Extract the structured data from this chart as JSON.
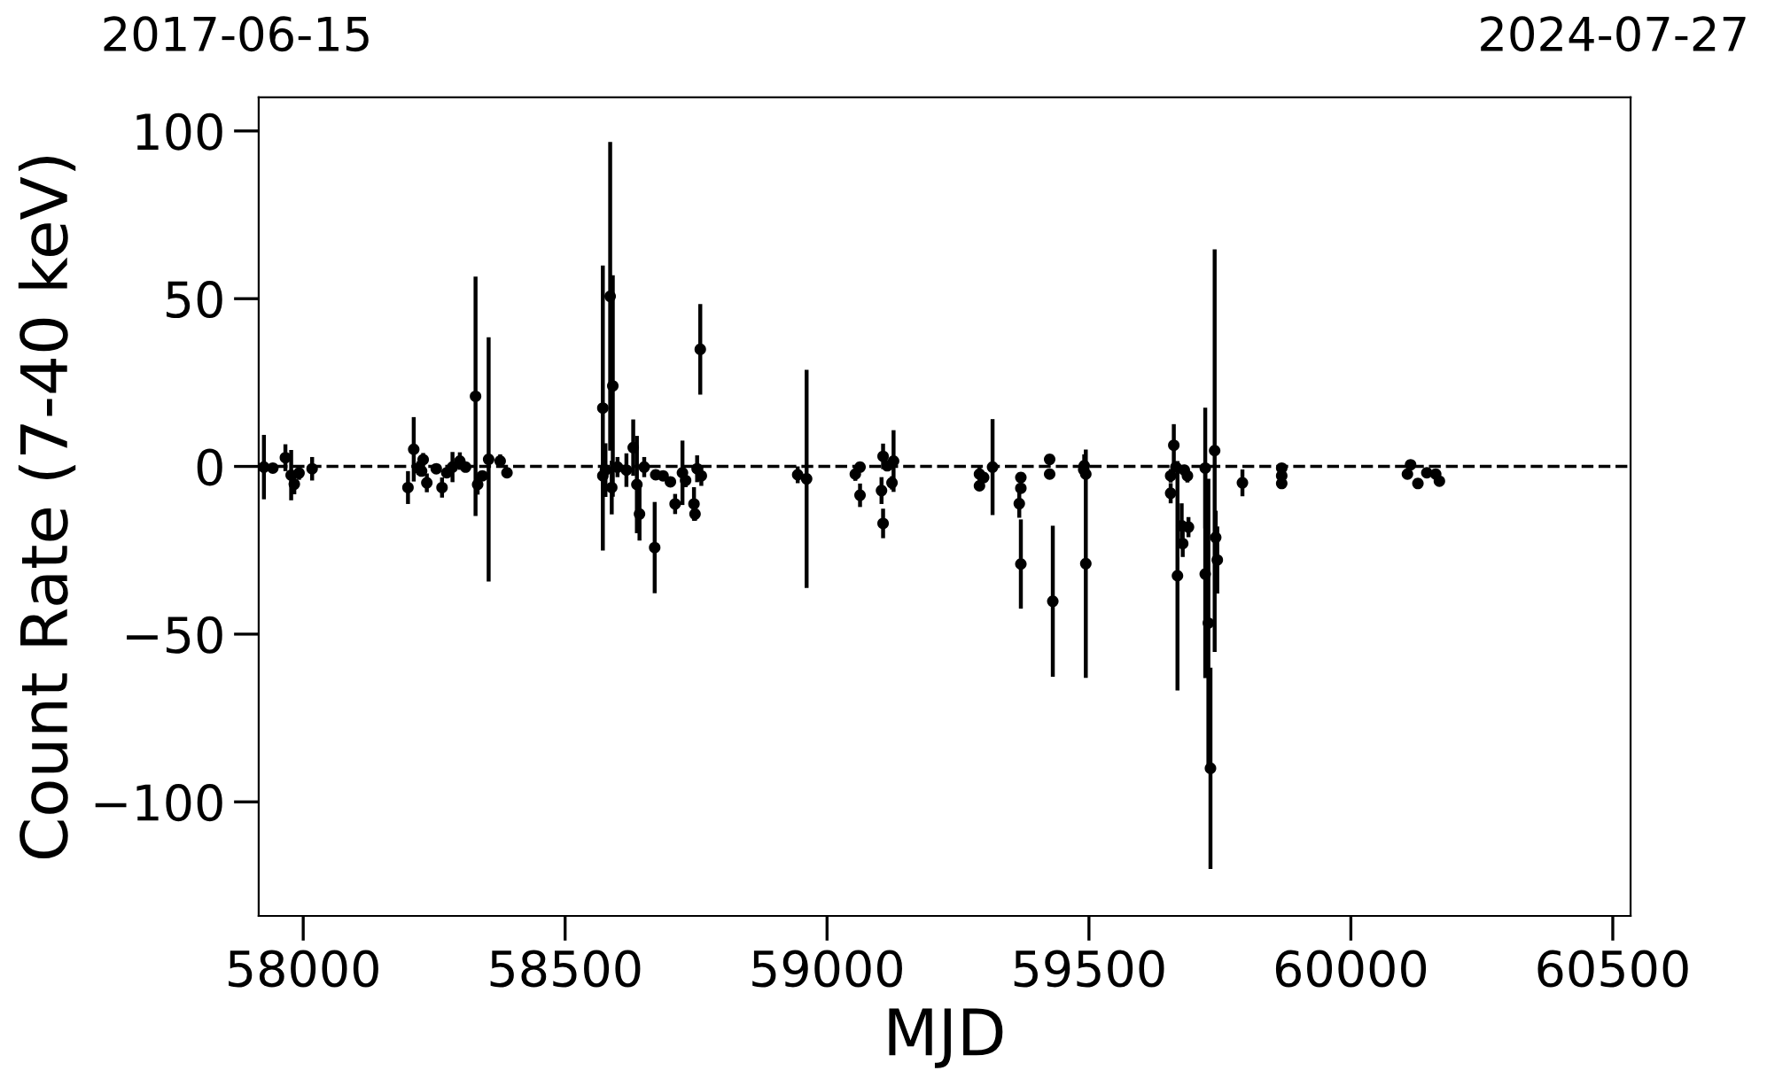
{
  "chart_data": {
    "type": "scatter",
    "xlabel": "MJD",
    "ylabel": "Count Rate (7-40 keV)",
    "annotations": [
      "2017-06-15",
      "2024-07-27"
    ],
    "xlim": [
      57915,
      60534
    ],
    "xticks": [
      58000,
      58500,
      59000,
      59500,
      60000,
      60500
    ],
    "ylim": [
      -134,
      110
    ],
    "yticks": [
      {
        "value": -100,
        "label": "−100"
      },
      {
        "value": -50,
        "label": "−50"
      },
      0,
      50,
      100
    ],
    "grid": false,
    "marker": "circle",
    "ref_lines": [
      {
        "axis": "y",
        "value": 0,
        "label": null,
        "color": "#000000",
        "line_style": "dashed"
      }
    ],
    "series": [
      {
        "color": "#000000",
        "x": [
          57925,
          57942,
          57966,
          57977,
          57983,
          57992,
          58017,
          58200,
          58211,
          58220,
          58229,
          58226,
          58236,
          58254,
          58265,
          58274,
          58285,
          58299,
          58310,
          58329,
          58333,
          58342,
          58354,
          58376,
          58389,
          58572,
          58572,
          58586,
          58591,
          58577,
          58589,
          58600,
          58617,
          58630,
          58637,
          58642,
          58651,
          58671,
          58673,
          58687,
          58701,
          58710,
          58724,
          58730,
          58746,
          58748,
          58752,
          58758,
          58760,
          58944,
          58961,
          59054,
          59063,
          59063,
          59107,
          59104,
          59107,
          59115,
          59127,
          59124,
          59291,
          59291,
          59299,
          59316,
          59370,
          59370,
          59367,
          59370,
          59425,
          59425,
          59431,
          59491,
          59494,
          59490,
          59494,
          59662,
          59656,
          59656,
          59666,
          59669,
          59677,
          59679,
          59690,
          59688,
          59682,
          59722,
          59722,
          59740,
          59742,
          59745,
          59728,
          59732,
          59793,
          59868,
          59868,
          59868,
          60114,
          60108,
          60128,
          60145,
          60162,
          60169
        ],
        "values": [
          -0.2,
          -0.5,
          2.6,
          -2.6,
          -5.3,
          -2,
          -0.7,
          -6.3,
          5.1,
          -0.5,
          2,
          -1.4,
          -4.9,
          -0.7,
          -6.3,
          -1.9,
          -0.2,
          1.6,
          -0.2,
          20.9,
          -5.4,
          -2.8,
          2.1,
          1.6,
          -1.9,
          17.4,
          -2.8,
          50.7,
          24,
          -1.1,
          -6.3,
          -0.2,
          -1.1,
          5.6,
          -5.4,
          -14.2,
          -0.2,
          -24.2,
          -2.5,
          -2.8,
          -4.6,
          -11.2,
          -1.9,
          -4.2,
          -11.2,
          -14.2,
          -0.7,
          34.9,
          -2.8,
          -2.5,
          -3.7,
          -2.3,
          -0.2,
          -8.6,
          3,
          -7.2,
          -17,
          0.2,
          1.6,
          -4.9,
          -2.3,
          -5.8,
          -3.3,
          -0.2,
          -3.3,
          -6.5,
          -11.1,
          -29.1,
          2.1,
          -2.3,
          -40.2,
          0.2,
          -2.3,
          -1,
          -29,
          6.3,
          -2.8,
          -8,
          -0.2,
          -32.6,
          -17.7,
          -23,
          -18.1,
          -2.8,
          -1.1,
          -0.5,
          -32.1,
          4.7,
          -21.2,
          -27.9,
          -46.7,
          -90,
          -4.9,
          -0.5,
          -2.8,
          -5.1,
          0.5,
          -2.3,
          -5.1,
          -1.9,
          -2.3,
          -4.4
        ],
        "errors": [
          9.6,
          1,
          4,
          7.5,
          3,
          2,
          3.5,
          4.9,
          9.6,
          2,
          2,
          1,
          2.8,
          1,
          3,
          1,
          4.5,
          2.6,
          1,
          35.7,
          3,
          1,
          36.4,
          2,
          1,
          42.5,
          4,
          46,
          33,
          8,
          8,
          3,
          5,
          8.4,
          14.5,
          7.9,
          3,
          13.6,
          1,
          1,
          1,
          3,
          9.6,
          2,
          5,
          2,
          4,
          13.5,
          3,
          2.5,
          32.5,
          2,
          1,
          3.5,
          3.8,
          4,
          4.4,
          1,
          9.2,
          2,
          2,
          1,
          1,
          14.3,
          1,
          1,
          4.2,
          13.3,
          1,
          1,
          22.5,
          3.4,
          1,
          1,
          34,
          6.3,
          2,
          3,
          1,
          34.2,
          6.7,
          4,
          3,
          2,
          1,
          18,
          31,
          60,
          8,
          10,
          43,
          30,
          4,
          1,
          1,
          1,
          1,
          1,
          1,
          1,
          1,
          1
        ]
      }
    ]
  }
}
